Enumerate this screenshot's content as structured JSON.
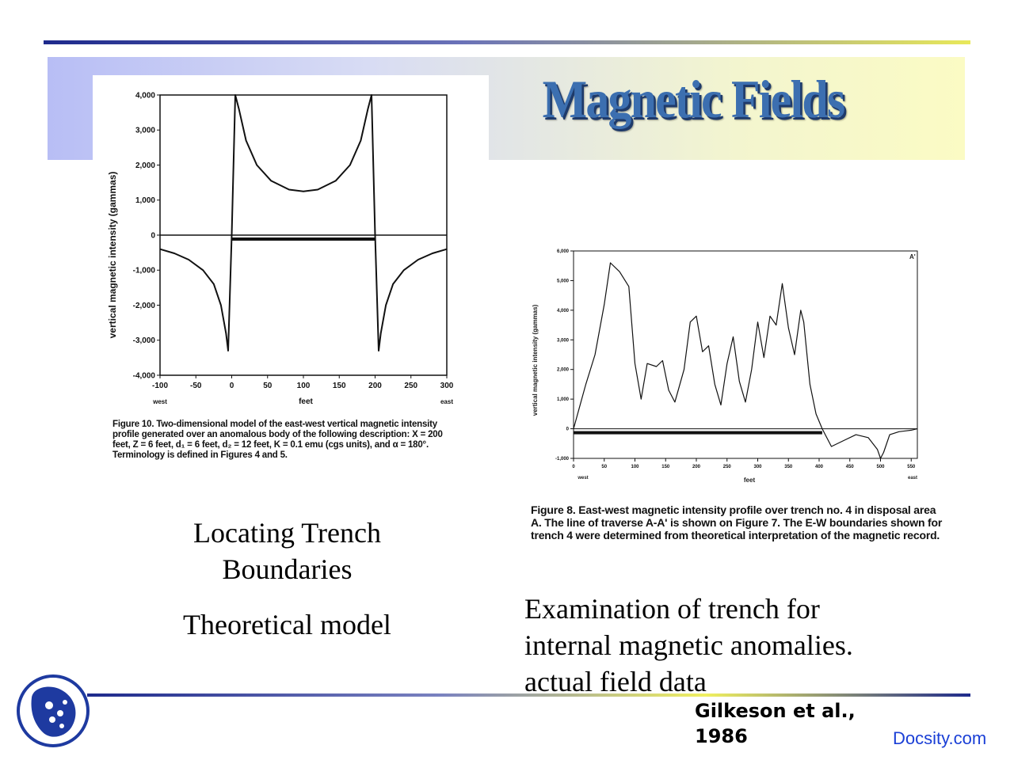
{
  "slide": {
    "title": "Magnetic Fields",
    "left_caption_line1": "Locating Trench",
    "left_caption_line2": "Boundaries",
    "left_subcaption": "Theoretical model",
    "right_line1": "Examination of trench for",
    "right_line2": "internal magnetic anomalies.",
    "right_line3": "actual field data",
    "citation_line1": "Gilkeson et al.,",
    "citation_line2": "1986",
    "brand": "Docsity.com"
  },
  "colors": {
    "title": "#3c6fb0",
    "title_shadow": "#1e3a6a",
    "rule_dark": "#1e2a8c",
    "rule_light": "#e8e85a",
    "brand": "#1a3fd6",
    "logo": "#1e3aa0"
  },
  "figure10": {
    "caption": "Figure 10. Two-dimensional model of the east-west vertical magnetic intensity profile generated over an anomalous body of the following description: X = 200 feet, Z = 6 feet, d₁ = 6 feet, d₂ = 12 feet, K = 0.1 emu (cgs units), and α = 180°. Terminology is defined in Figures 4 and 5."
  },
  "figure8": {
    "caption": "Figure 8. East-west magnetic intensity profile over trench no. 4 in disposal area A. The line of traverse A-A' is shown on Figure 7. The E-W boundaries shown for trench 4 were determined from theoretical interpretation of the magnetic record."
  },
  "chart_data": [
    {
      "type": "line",
      "title": "",
      "xlabel": "feet",
      "ylabel": "vertical magnetic intensity (gammas)",
      "x_end_labels": [
        "west",
        "east"
      ],
      "xlim": [
        -100,
        300
      ],
      "ylim": [
        -4000,
        4000
      ],
      "x_ticks": [
        -100,
        -50,
        0,
        50,
        100,
        150,
        200,
        250,
        300
      ],
      "x_tick_labels": [
        "-100",
        "-50",
        "0",
        "50",
        "100",
        "150",
        "200",
        "250",
        "300"
      ],
      "y_ticks": [
        4000,
        3000,
        2000,
        1000,
        0,
        -1000,
        -2000,
        -3000,
        -4000
      ],
      "y_tick_labels": [
        "4,000",
        "3,000",
        "2,000",
        "1,000",
        "0",
        "-1,000",
        "-2,000",
        "-3,000",
        "-4,000"
      ],
      "series": [
        {
          "name": "modeled profile",
          "x": [
            -100,
            -80,
            -60,
            -40,
            -25,
            -15,
            -8,
            -5,
            0,
            5,
            10,
            20,
            35,
            55,
            80,
            100,
            120,
            145,
            165,
            180,
            190,
            195,
            200,
            205,
            208,
            215,
            225,
            240,
            260,
            280,
            300
          ],
          "y": [
            -400,
            -520,
            -700,
            -1000,
            -1400,
            -2000,
            -2800,
            -3300,
            0,
            4000,
            3600,
            2700,
            2000,
            1550,
            1300,
            1250,
            1300,
            1550,
            2000,
            2700,
            3600,
            4000,
            0,
            -3300,
            -2800,
            -2000,
            -1400,
            -1000,
            -700,
            -520,
            -400
          ]
        }
      ],
      "body_extent": [
        0,
        200
      ]
    },
    {
      "type": "line",
      "title": "",
      "xlabel": "feet",
      "ylabel": "vertical magnetic intensity (gammas)",
      "x_end_labels": [
        "west",
        "east"
      ],
      "corner_label": "A'",
      "xlim": [
        0,
        560
      ],
      "ylim": [
        -1000,
        6000
      ],
      "x_ticks": [
        0,
        50,
        100,
        150,
        200,
        250,
        300,
        350,
        400,
        450,
        500,
        550
      ],
      "x_tick_labels": [
        "0",
        "50",
        "100",
        "150",
        "200",
        "250",
        "300",
        "350",
        "400",
        "450",
        "500",
        "550"
      ],
      "y_ticks": [
        6000,
        5000,
        4000,
        3000,
        2000,
        1000,
        0,
        -1000
      ],
      "y_tick_labels": [
        "6,000",
        "5,000",
        "4,000",
        "3,000",
        "2,000",
        "1,000",
        "0",
        "-1,000"
      ],
      "series": [
        {
          "name": "measured profile",
          "x": [
            0,
            20,
            35,
            50,
            60,
            75,
            90,
            100,
            110,
            120,
            135,
            145,
            155,
            165,
            180,
            190,
            200,
            210,
            220,
            230,
            240,
            250,
            260,
            270,
            280,
            290,
            300,
            310,
            320,
            330,
            340,
            350,
            360,
            370,
            375,
            385,
            395,
            405
          ],
          "y": [
            0,
            1500,
            2500,
            4200,
            5600,
            5300,
            4800,
            2200,
            1000,
            2200,
            2100,
            2300,
            1300,
            900,
            2000,
            3600,
            3800,
            2600,
            2800,
            1500,
            800,
            2200,
            3100,
            1600,
            900,
            2000,
            3600,
            2400,
            3800,
            3500,
            4900,
            3400,
            2500,
            4000,
            3600,
            1500,
            500,
            0
          ]
        },
        {
          "name": "beyond trench",
          "x": [
            405,
            420,
            440,
            460,
            480,
            495,
            500,
            505,
            515,
            530,
            550,
            560
          ],
          "y": [
            0,
            -600,
            -400,
            -200,
            -300,
            -700,
            -1000,
            -800,
            -200,
            -100,
            -50,
            0
          ]
        }
      ],
      "trench_extent": [
        0,
        405
      ]
    }
  ]
}
